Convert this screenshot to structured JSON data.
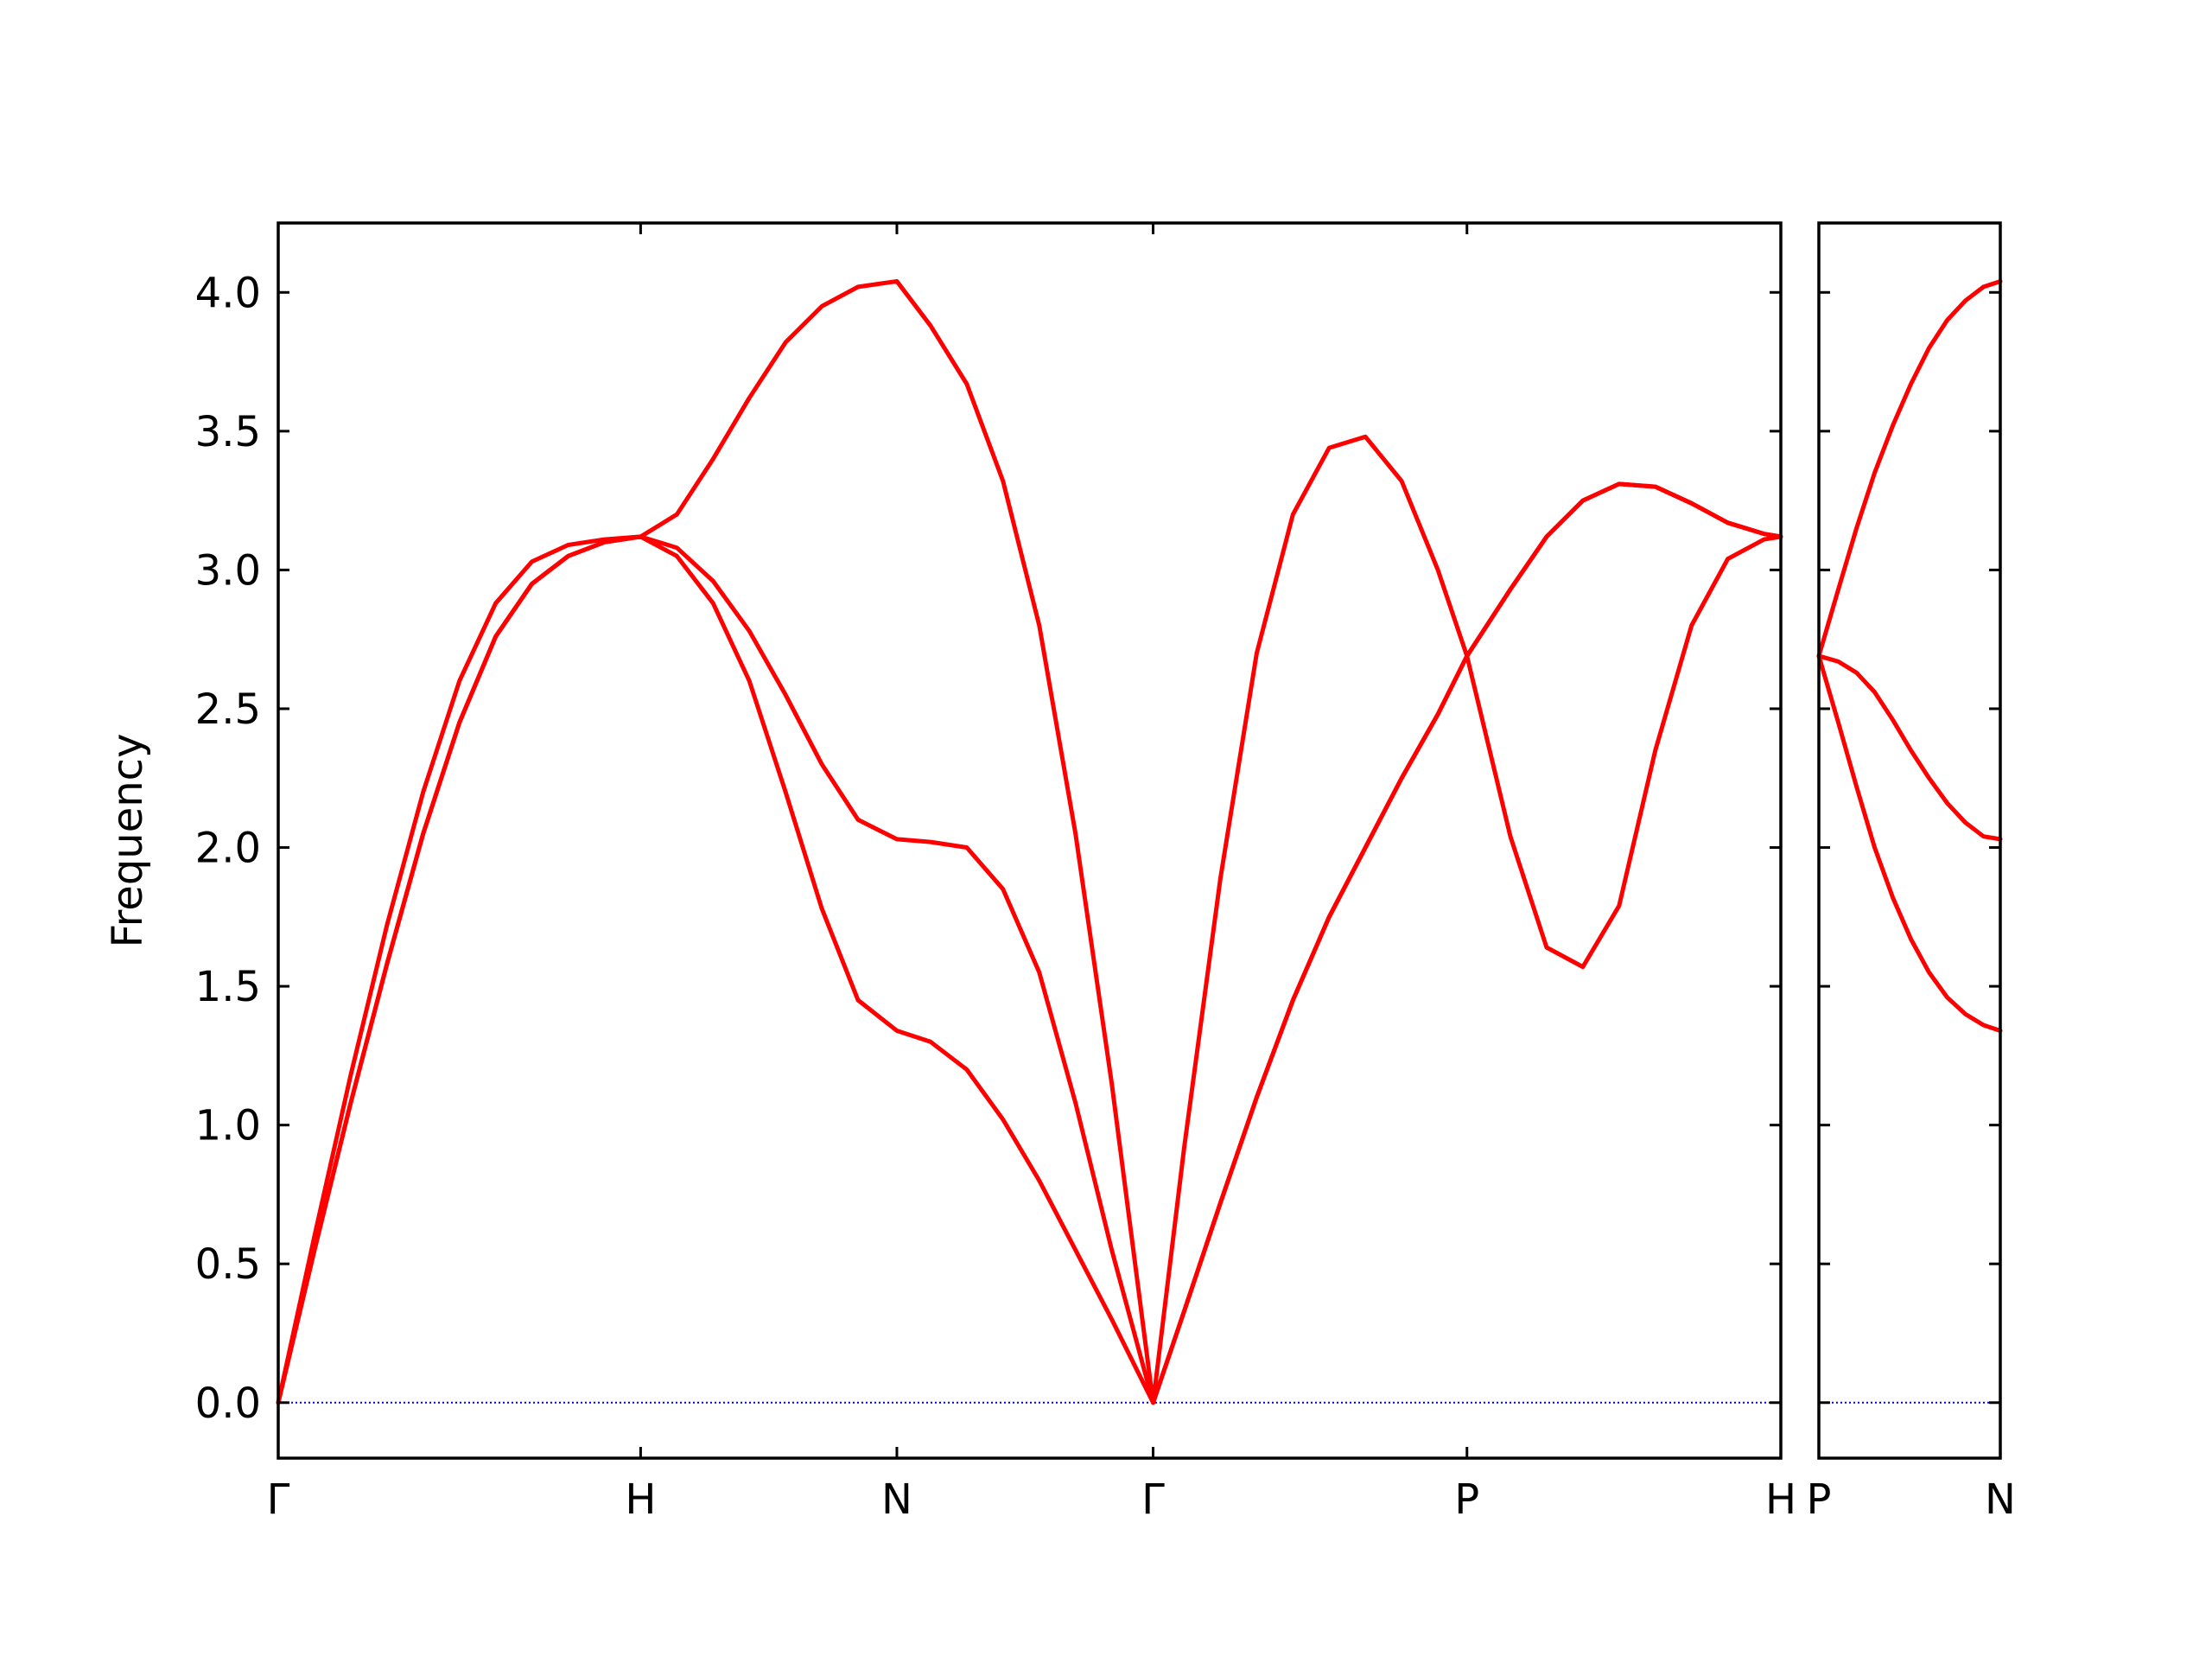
{
  "chart_data": [
    {
      "type": "line",
      "ylabel": "Frequency",
      "xlim": [
        0,
        4.1463
      ],
      "ylim": [
        -0.2,
        4.25
      ],
      "xticks": [
        {
          "value": 0,
          "label": "Γ"
        },
        {
          "value": 1.0,
          "label": "H"
        },
        {
          "value": 1.7071,
          "label": "N"
        },
        {
          "value": 2.4142,
          "label": "Γ"
        },
        {
          "value": 3.2802,
          "label": "P"
        },
        {
          "value": 4.1463,
          "label": "H"
        }
      ],
      "yticks": [
        {
          "value": 0,
          "label": "0.0"
        },
        {
          "value": 0.5,
          "label": "0.5"
        },
        {
          "value": 1.0,
          "label": "1.0"
        },
        {
          "value": 1.5,
          "label": "1.5"
        },
        {
          "value": 2.0,
          "label": "2.0"
        },
        {
          "value": 2.5,
          "label": "2.5"
        },
        {
          "value": 3.0,
          "label": "3.0"
        },
        {
          "value": 3.5,
          "label": "3.5"
        },
        {
          "value": 4.0,
          "label": "4.0"
        }
      ],
      "hline": {
        "y": 0,
        "color": "#0000cc",
        "style": "dotted"
      },
      "x": [
        0,
        0.1,
        0.2,
        0.3,
        0.4,
        0.5,
        0.6,
        0.7,
        0.8,
        0.9,
        1.0,
        1.1,
        1.2,
        1.3,
        1.4,
        1.5,
        1.6,
        1.7071,
        1.8,
        1.9,
        2.0,
        2.1,
        2.2,
        2.3,
        2.4142,
        2.5,
        2.6,
        2.7,
        2.8,
        2.9,
        3.0,
        3.1,
        3.2,
        3.2802,
        3.4,
        3.5,
        3.6,
        3.7,
        3.8,
        3.9,
        4.0,
        4.1,
        4.1463
      ],
      "series": [
        {
          "color": "#ff0000",
          "values": [
            0,
            0.55,
            1.08,
            1.58,
            2.05,
            2.45,
            2.76,
            2.95,
            3.05,
            3.1,
            3.12,
            3.05,
            2.88,
            2.6,
            2.2,
            1.78,
            1.45,
            1.34,
            1.3,
            1.2,
            1.02,
            0.8,
            0.55,
            0.3,
            0,
            0.33,
            0.72,
            1.1,
            1.45,
            1.75,
            2.0,
            2.25,
            2.48,
            2.69,
            2.04,
            1.64,
            1.57,
            1.79,
            2.35,
            2.8,
            3.04,
            3.11,
            3.12
          ]
        },
        {
          "color": "#ff0000",
          "values": [
            0,
            0.55,
            1.08,
            1.58,
            2.05,
            2.45,
            2.76,
            2.95,
            3.05,
            3.1,
            3.12,
            3.08,
            2.96,
            2.78,
            2.55,
            2.3,
            2.1,
            2.03,
            2.02,
            2.0,
            1.85,
            1.55,
            1.08,
            0.55,
            0,
            0.33,
            0.72,
            1.1,
            1.45,
            1.75,
            2.0,
            2.25,
            2.48,
            2.69,
            2.93,
            3.12,
            3.25,
            3.31,
            3.3,
            3.24,
            3.17,
            3.13,
            3.12
          ]
        },
        {
          "color": "#ff0000",
          "values": [
            0,
            0.6,
            1.18,
            1.72,
            2.2,
            2.6,
            2.88,
            3.03,
            3.09,
            3.11,
            3.12,
            3.2,
            3.4,
            3.62,
            3.82,
            3.95,
            4.02,
            4.04,
            3.88,
            3.67,
            3.32,
            2.8,
            2.05,
            1.15,
            0,
            0.92,
            1.89,
            2.7,
            3.2,
            3.44,
            3.48,
            3.32,
            3.0,
            2.69,
            2.93,
            3.12,
            3.25,
            3.31,
            3.3,
            3.24,
            3.17,
            3.13,
            3.12
          ]
        }
      ]
    },
    {
      "type": "line",
      "xlim": [
        4.1463,
        4.6463
      ],
      "ylim": [
        -0.2,
        4.25
      ],
      "xticks": [
        {
          "value": 4.1463,
          "label": "P"
        },
        {
          "value": 4.6463,
          "label": "N"
        }
      ],
      "yticks": [
        0,
        0.5,
        1,
        1.5,
        2,
        2.5,
        3,
        3.5,
        4
      ],
      "hline": {
        "y": 0,
        "color": "#0000cc",
        "style": "dotted"
      },
      "x": [
        4.1463,
        4.2,
        4.25,
        4.3,
        4.35,
        4.4,
        4.45,
        4.5,
        4.55,
        4.6,
        4.6463
      ],
      "series": [
        {
          "color": "#ff0000",
          "values": [
            2.69,
            2.45,
            2.22,
            2.0,
            1.82,
            1.67,
            1.55,
            1.46,
            1.4,
            1.36,
            1.34
          ]
        },
        {
          "color": "#ff0000",
          "values": [
            2.69,
            2.67,
            2.63,
            2.56,
            2.46,
            2.35,
            2.25,
            2.16,
            2.09,
            2.04,
            2.03
          ]
        },
        {
          "color": "#ff0000",
          "values": [
            2.69,
            2.93,
            3.15,
            3.35,
            3.52,
            3.67,
            3.8,
            3.9,
            3.97,
            4.02,
            4.04
          ]
        }
      ]
    }
  ]
}
